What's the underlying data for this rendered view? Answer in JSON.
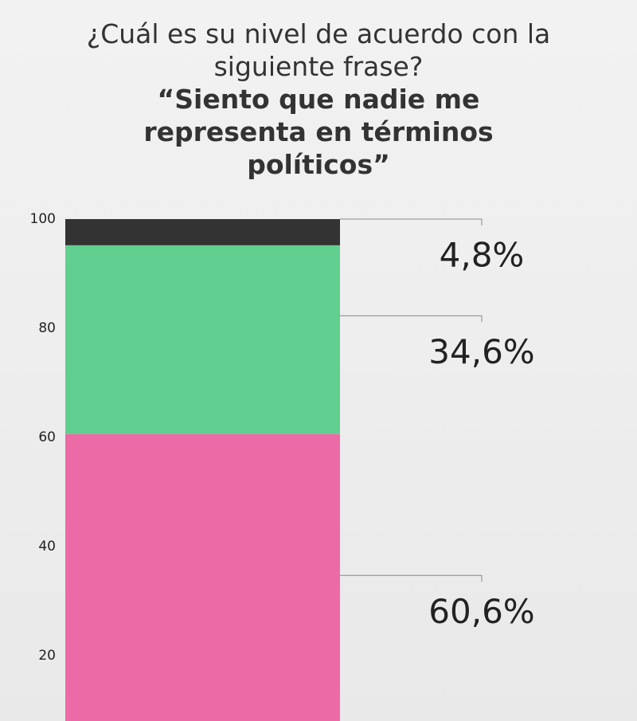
{
  "chart_data": {
    "type": "stacked_bar",
    "title": "¿Cuál es su nivel de acuerdo con la siguiente frase?",
    "subtitle": "“Siento que nadie me representa en términos políticos”",
    "categories": [
      null
    ],
    "series": [
      {
        "color": "#ec6ba6",
        "values": [
          60.6
        ],
        "value_labels": [
          "60,6%"
        ]
      },
      {
        "color": "#60cf8f",
        "values": [
          34.6
        ],
        "value_labels": [
          "34,6%"
        ]
      },
      {
        "color": "#333333",
        "values": [
          4.8
        ],
        "value_labels": [
          "4,8%"
        ]
      }
    ],
    "ylim": [
      8,
      100
    ],
    "yticks": [
      20,
      40,
      60,
      80,
      100
    ]
  }
}
